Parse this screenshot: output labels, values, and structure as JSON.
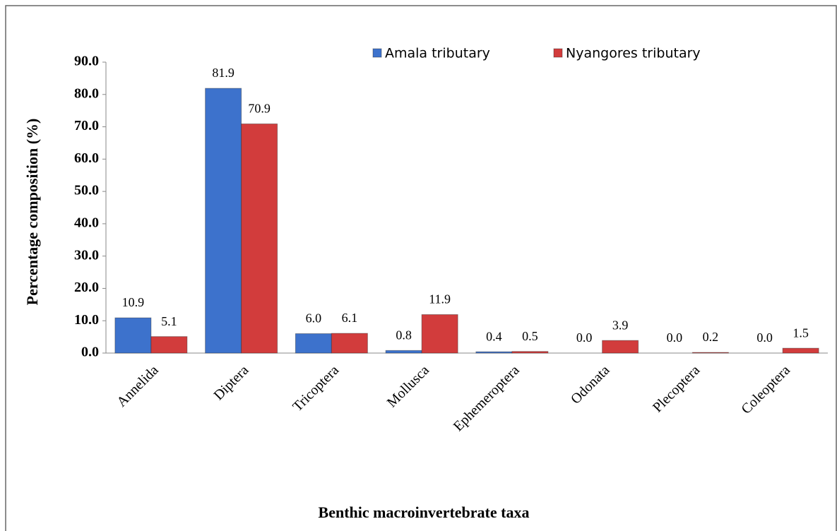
{
  "chart_data": {
    "type": "bar",
    "x_label": "Benthic macroinvertebrate taxa",
    "y_label": "Percentage composition (%)",
    "categories": [
      "Annelida",
      "Diptera",
      "Tricoptera",
      "Mollusca",
      "Ephemeroptera",
      "Odonata",
      "Plecoptera",
      "Coleoptera"
    ],
    "series": [
      {
        "name": "Amala tributary",
        "color": "#3d72cc",
        "values": [
          10.9,
          81.9,
          6.0,
          0.8,
          0.4,
          0.0,
          0.0,
          0.0
        ],
        "value_labels": [
          "10.9",
          "81.9",
          "6.0",
          "0.8",
          "0.4",
          "0.0",
          "0.0",
          "0.0"
        ]
      },
      {
        "name": "Nyangores tributary",
        "color": "#d23c3c",
        "values": [
          5.1,
          70.9,
          6.1,
          11.9,
          0.5,
          3.9,
          0.2,
          1.5
        ],
        "value_labels": [
          "5.1",
          "70.9",
          "6.1",
          "11.9",
          "0.5",
          "3.9",
          "0.2",
          "1.5"
        ]
      }
    ],
    "ylim": [
      0,
      90
    ],
    "yticks": [
      {
        "value": 0,
        "label": "0.0"
      },
      {
        "value": 10,
        "label": "10.0"
      },
      {
        "value": 20,
        "label": "20.0"
      },
      {
        "value": 30,
        "label": "30.0"
      },
      {
        "value": 40,
        "label": "40.0"
      },
      {
        "value": 50,
        "label": "50.0"
      },
      {
        "value": 60,
        "label": "60.0"
      },
      {
        "value": 70,
        "label": "70.0"
      },
      {
        "value": 80,
        "label": "80.0"
      },
      {
        "value": 90,
        "label": "90.0"
      }
    ],
    "grid": false,
    "legend": "top"
  }
}
